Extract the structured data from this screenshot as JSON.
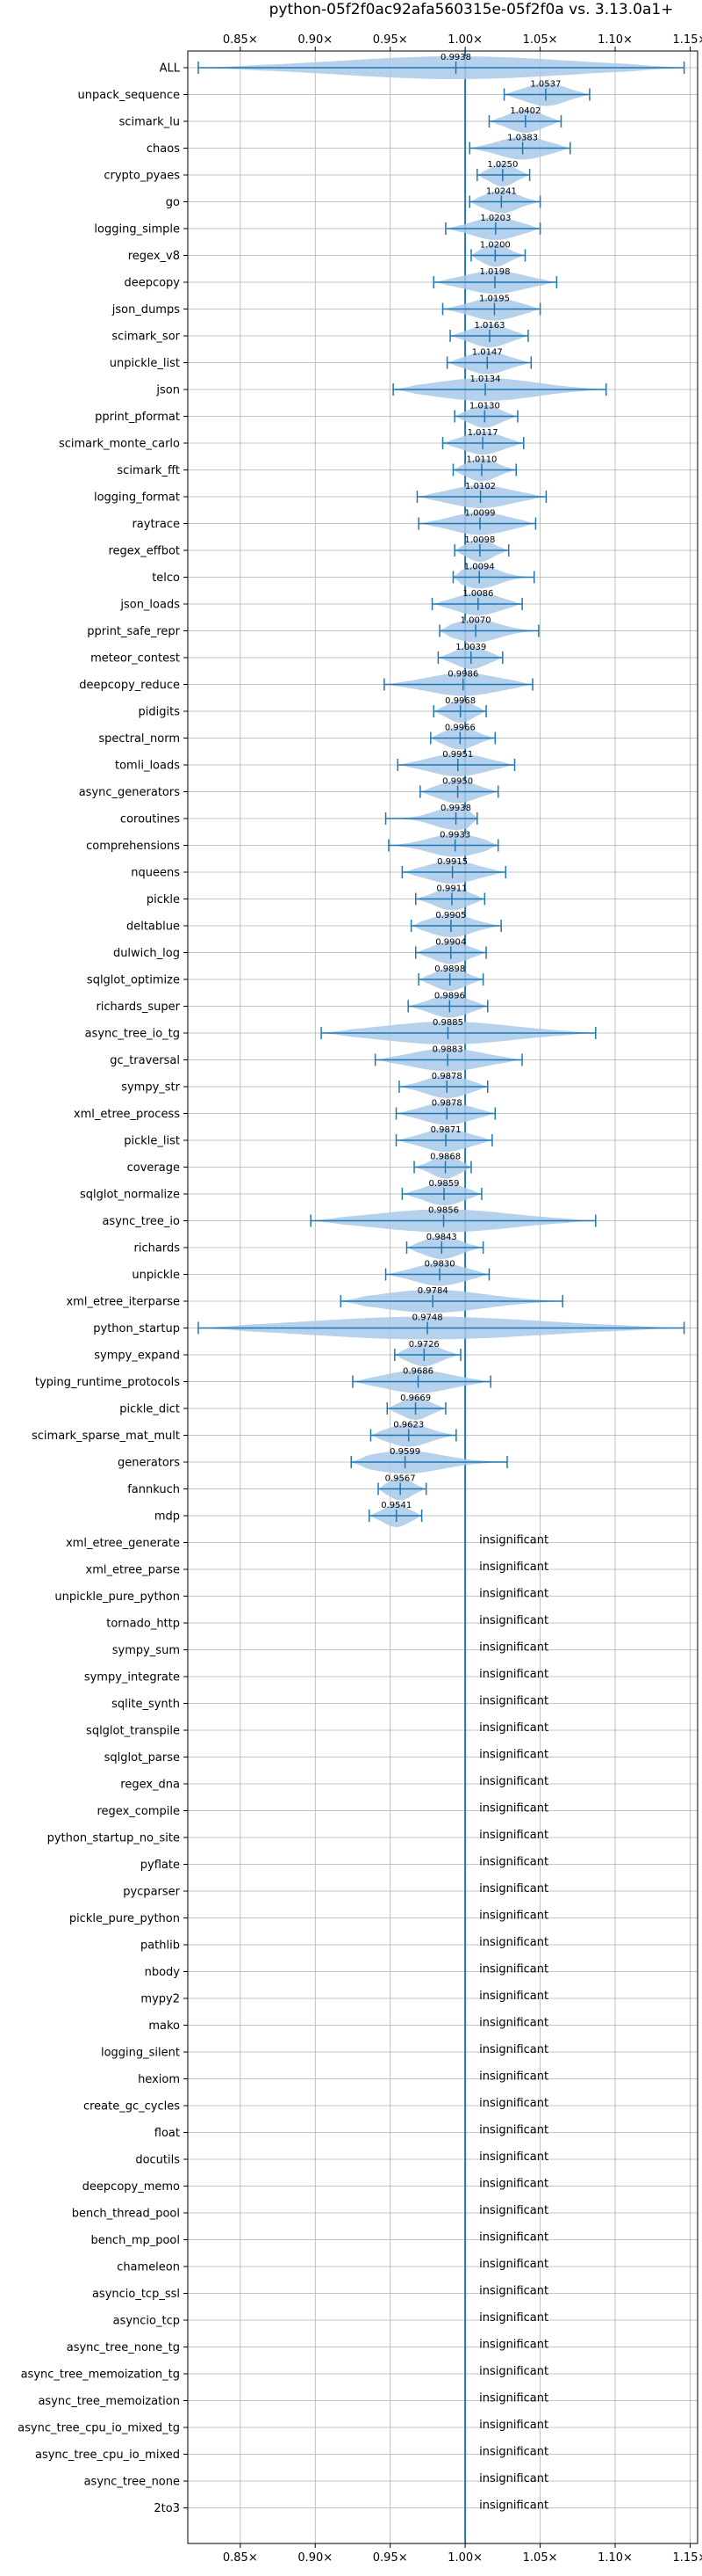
{
  "chart_data": {
    "type": "violin",
    "title": "python-05f2f0ac92afa560315e-05f2f0a vs. 3.13.0a1+",
    "xlim": [
      0.815,
      1.155
    ],
    "xticks": [
      0.85,
      0.9,
      0.95,
      1.0,
      1.05,
      1.1,
      1.15
    ],
    "xtick_labels": [
      "0.85×",
      "0.90×",
      "0.95×",
      "1.00×",
      "1.05×",
      "1.10×",
      "1.15×"
    ],
    "reference_line": 1.0,
    "grid": true,
    "insignificant_label": "insignificant",
    "benchmarks": [
      {
        "name": "ALL",
        "value": 0.9938,
        "label": "0.9938",
        "range": [
          0.822,
          1.146
        ]
      },
      {
        "name": "unpack_sequence",
        "value": 1.0537,
        "label": "1.0537",
        "range": [
          1.026,
          1.083
        ]
      },
      {
        "name": "scimark_lu",
        "value": 1.0402,
        "label": "1.0402",
        "range": [
          1.016,
          1.064
        ]
      },
      {
        "name": "chaos",
        "value": 1.0383,
        "label": "1.0383",
        "range": [
          1.003,
          1.07
        ]
      },
      {
        "name": "crypto_pyaes",
        "value": 1.025,
        "label": "1.0250",
        "range": [
          1.008,
          1.043
        ]
      },
      {
        "name": "go",
        "value": 1.0241,
        "label": "1.0241",
        "range": [
          1.003,
          1.05
        ]
      },
      {
        "name": "logging_simple",
        "value": 1.0203,
        "label": "1.0203",
        "range": [
          0.987,
          1.05
        ]
      },
      {
        "name": "regex_v8",
        "value": 1.02,
        "label": "1.0200",
        "range": [
          1.004,
          1.04
        ]
      },
      {
        "name": "deepcopy",
        "value": 1.0198,
        "label": "1.0198",
        "range": [
          0.979,
          1.061
        ]
      },
      {
        "name": "json_dumps",
        "value": 1.0195,
        "label": "1.0195",
        "range": [
          0.985,
          1.05
        ]
      },
      {
        "name": "scimark_sor",
        "value": 1.0163,
        "label": "1.0163",
        "range": [
          0.99,
          1.042
        ]
      },
      {
        "name": "unpickle_list",
        "value": 1.0147,
        "label": "1.0147",
        "range": [
          0.988,
          1.044
        ]
      },
      {
        "name": "json",
        "value": 1.0134,
        "label": "1.0134",
        "range": [
          0.952,
          1.094
        ]
      },
      {
        "name": "pprint_pformat",
        "value": 1.013,
        "label": "1.0130",
        "range": [
          0.993,
          1.035
        ]
      },
      {
        "name": "scimark_monte_carlo",
        "value": 1.0117,
        "label": "1.0117",
        "range": [
          0.985,
          1.039
        ]
      },
      {
        "name": "scimark_fft",
        "value": 1.011,
        "label": "1.0110",
        "range": [
          0.992,
          1.034
        ]
      },
      {
        "name": "logging_format",
        "value": 1.0102,
        "label": "1.0102",
        "range": [
          0.968,
          1.054
        ]
      },
      {
        "name": "raytrace",
        "value": 1.0099,
        "label": "1.0099",
        "range": [
          0.969,
          1.047
        ]
      },
      {
        "name": "regex_effbot",
        "value": 1.0098,
        "label": "1.0098",
        "range": [
          0.993,
          1.029
        ]
      },
      {
        "name": "telco",
        "value": 1.0094,
        "label": "1.0094",
        "range": [
          0.992,
          1.046
        ]
      },
      {
        "name": "json_loads",
        "value": 1.0086,
        "label": "1.0086",
        "range": [
          0.978,
          1.038
        ]
      },
      {
        "name": "pprint_safe_repr",
        "value": 1.007,
        "label": "1.0070",
        "range": [
          0.983,
          1.049
        ]
      },
      {
        "name": "meteor_contest",
        "value": 1.0039,
        "label": "1.0039",
        "range": [
          0.982,
          1.025
        ]
      },
      {
        "name": "deepcopy_reduce",
        "value": 0.9986,
        "label": "0.9986",
        "range": [
          0.946,
          1.045
        ]
      },
      {
        "name": "pidigits",
        "value": 0.9968,
        "label": "0.9968",
        "range": [
          0.979,
          1.014
        ]
      },
      {
        "name": "spectral_norm",
        "value": 0.9966,
        "label": "0.9966",
        "range": [
          0.977,
          1.02
        ]
      },
      {
        "name": "tomli_loads",
        "value": 0.9951,
        "label": "0.9951",
        "range": [
          0.955,
          1.033
        ]
      },
      {
        "name": "async_generators",
        "value": 0.995,
        "label": "0.9950",
        "range": [
          0.97,
          1.022
        ]
      },
      {
        "name": "coroutines",
        "value": 0.9938,
        "label": "0.9938",
        "range": [
          0.947,
          1.008
        ]
      },
      {
        "name": "comprehensions",
        "value": 0.9933,
        "label": "0.9933",
        "range": [
          0.949,
          1.022
        ]
      },
      {
        "name": "nqueens",
        "value": 0.9915,
        "label": "0.9915",
        "range": [
          0.958,
          1.027
        ]
      },
      {
        "name": "pickle",
        "value": 0.9911,
        "label": "0.9911",
        "range": [
          0.967,
          1.013
        ]
      },
      {
        "name": "deltablue",
        "value": 0.9905,
        "label": "0.9905",
        "range": [
          0.964,
          1.024
        ]
      },
      {
        "name": "dulwich_log",
        "value": 0.9904,
        "label": "0.9904",
        "range": [
          0.967,
          1.014
        ]
      },
      {
        "name": "sqlglot_optimize",
        "value": 0.9898,
        "label": "0.9898",
        "range": [
          0.969,
          1.012
        ]
      },
      {
        "name": "richards_super",
        "value": 0.9896,
        "label": "0.9896",
        "range": [
          0.962,
          1.015
        ]
      },
      {
        "name": "async_tree_io_tg",
        "value": 0.9885,
        "label": "0.9885",
        "range": [
          0.904,
          1.087
        ]
      },
      {
        "name": "gc_traversal",
        "value": 0.9883,
        "label": "0.9883",
        "range": [
          0.94,
          1.038
        ]
      },
      {
        "name": "sympy_str",
        "value": 0.9878,
        "label": "0.9878",
        "range": [
          0.956,
          1.015
        ]
      },
      {
        "name": "xml_etree_process",
        "value": 0.9878,
        "label": "0.9878",
        "range": [
          0.954,
          1.02
        ]
      },
      {
        "name": "pickle_list",
        "value": 0.9871,
        "label": "0.9871",
        "range": [
          0.954,
          1.018
        ]
      },
      {
        "name": "coverage",
        "value": 0.9868,
        "label": "0.9868",
        "range": [
          0.966,
          1.004
        ]
      },
      {
        "name": "sqlglot_normalize",
        "value": 0.9859,
        "label": "0.9859",
        "range": [
          0.958,
          1.011
        ]
      },
      {
        "name": "async_tree_io",
        "value": 0.9856,
        "label": "0.9856",
        "range": [
          0.897,
          1.087
        ]
      },
      {
        "name": "richards",
        "value": 0.9843,
        "label": "0.9843",
        "range": [
          0.961,
          1.012
        ]
      },
      {
        "name": "unpickle",
        "value": 0.983,
        "label": "0.9830",
        "range": [
          0.947,
          1.016
        ]
      },
      {
        "name": "xml_etree_iterparse",
        "value": 0.9784,
        "label": "0.9784",
        "range": [
          0.917,
          1.065
        ]
      },
      {
        "name": "python_startup",
        "value": 0.9748,
        "label": "0.9748",
        "range": [
          0.822,
          1.146
        ]
      },
      {
        "name": "sympy_expand",
        "value": 0.9726,
        "label": "0.9726",
        "range": [
          0.953,
          0.997
        ]
      },
      {
        "name": "typing_runtime_protocols",
        "value": 0.9686,
        "label": "0.9686",
        "range": [
          0.925,
          1.017
        ]
      },
      {
        "name": "pickle_dict",
        "value": 0.9669,
        "label": "0.9669",
        "range": [
          0.948,
          0.987
        ]
      },
      {
        "name": "scimark_sparse_mat_mult",
        "value": 0.9623,
        "label": "0.9623",
        "range": [
          0.937,
          0.994
        ]
      },
      {
        "name": "generators",
        "value": 0.9599,
        "label": "0.9599",
        "range": [
          0.924,
          1.028
        ]
      },
      {
        "name": "fannkuch",
        "value": 0.9567,
        "label": "0.9567",
        "range": [
          0.942,
          0.974
        ]
      },
      {
        "name": "mdp",
        "value": 0.9541,
        "label": "0.9541",
        "range": [
          0.936,
          0.971
        ]
      },
      {
        "name": "xml_etree_generate",
        "value": null
      },
      {
        "name": "xml_etree_parse",
        "value": null
      },
      {
        "name": "unpickle_pure_python",
        "value": null
      },
      {
        "name": "tornado_http",
        "value": null
      },
      {
        "name": "sympy_sum",
        "value": null
      },
      {
        "name": "sympy_integrate",
        "value": null
      },
      {
        "name": "sqlite_synth",
        "value": null
      },
      {
        "name": "sqlglot_transpile",
        "value": null
      },
      {
        "name": "sqlglot_parse",
        "value": null
      },
      {
        "name": "regex_dna",
        "value": null
      },
      {
        "name": "regex_compile",
        "value": null
      },
      {
        "name": "python_startup_no_site",
        "value": null
      },
      {
        "name": "pyflate",
        "value": null
      },
      {
        "name": "pycparser",
        "value": null
      },
      {
        "name": "pickle_pure_python",
        "value": null
      },
      {
        "name": "pathlib",
        "value": null
      },
      {
        "name": "nbody",
        "value": null
      },
      {
        "name": "mypy2",
        "value": null
      },
      {
        "name": "mako",
        "value": null
      },
      {
        "name": "logging_silent",
        "value": null
      },
      {
        "name": "hexiom",
        "value": null
      },
      {
        "name": "create_gc_cycles",
        "value": null
      },
      {
        "name": "float",
        "value": null
      },
      {
        "name": "docutils",
        "value": null
      },
      {
        "name": "deepcopy_memo",
        "value": null
      },
      {
        "name": "bench_thread_pool",
        "value": null
      },
      {
        "name": "bench_mp_pool",
        "value": null
      },
      {
        "name": "chameleon",
        "value": null
      },
      {
        "name": "asyncio_tcp_ssl",
        "value": null
      },
      {
        "name": "asyncio_tcp",
        "value": null
      },
      {
        "name": "async_tree_none_tg",
        "value": null
      },
      {
        "name": "async_tree_memoization_tg",
        "value": null
      },
      {
        "name": "async_tree_memoization",
        "value": null
      },
      {
        "name": "async_tree_cpu_io_mixed_tg",
        "value": null
      },
      {
        "name": "async_tree_cpu_io_mixed",
        "value": null
      },
      {
        "name": "async_tree_none",
        "value": null
      },
      {
        "name": "2to3",
        "value": null
      }
    ],
    "colors": {
      "violin": "#a9c9e8",
      "line": "#1f77b4",
      "grid": "#b0b0b0"
    }
  }
}
